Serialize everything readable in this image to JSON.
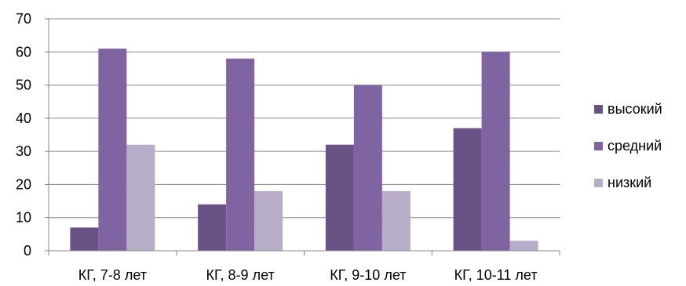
{
  "chart_data": {
    "type": "bar",
    "categories": [
      "КГ, 7-8 лет",
      "КГ, 8-9 лет",
      "КГ, 9-10 лет",
      "КГ, 10-11 лет"
    ],
    "series": [
      {
        "name": "высокий",
        "values": [
          7,
          14,
          32,
          37
        ],
        "color": "#6a5286"
      },
      {
        "name": "средний",
        "values": [
          61,
          58,
          50,
          60
        ],
        "color": "#8064a2"
      },
      {
        "name": "низкий",
        "values": [
          32,
          18,
          18,
          3
        ],
        "color": "#b7adc9"
      }
    ],
    "title": "",
    "xlabel": "",
    "ylabel": "",
    "ylim": [
      0,
      70
    ],
    "yticks": [
      0,
      10,
      20,
      30,
      40,
      50,
      60,
      70
    ],
    "grid": true,
    "legend": "right"
  }
}
